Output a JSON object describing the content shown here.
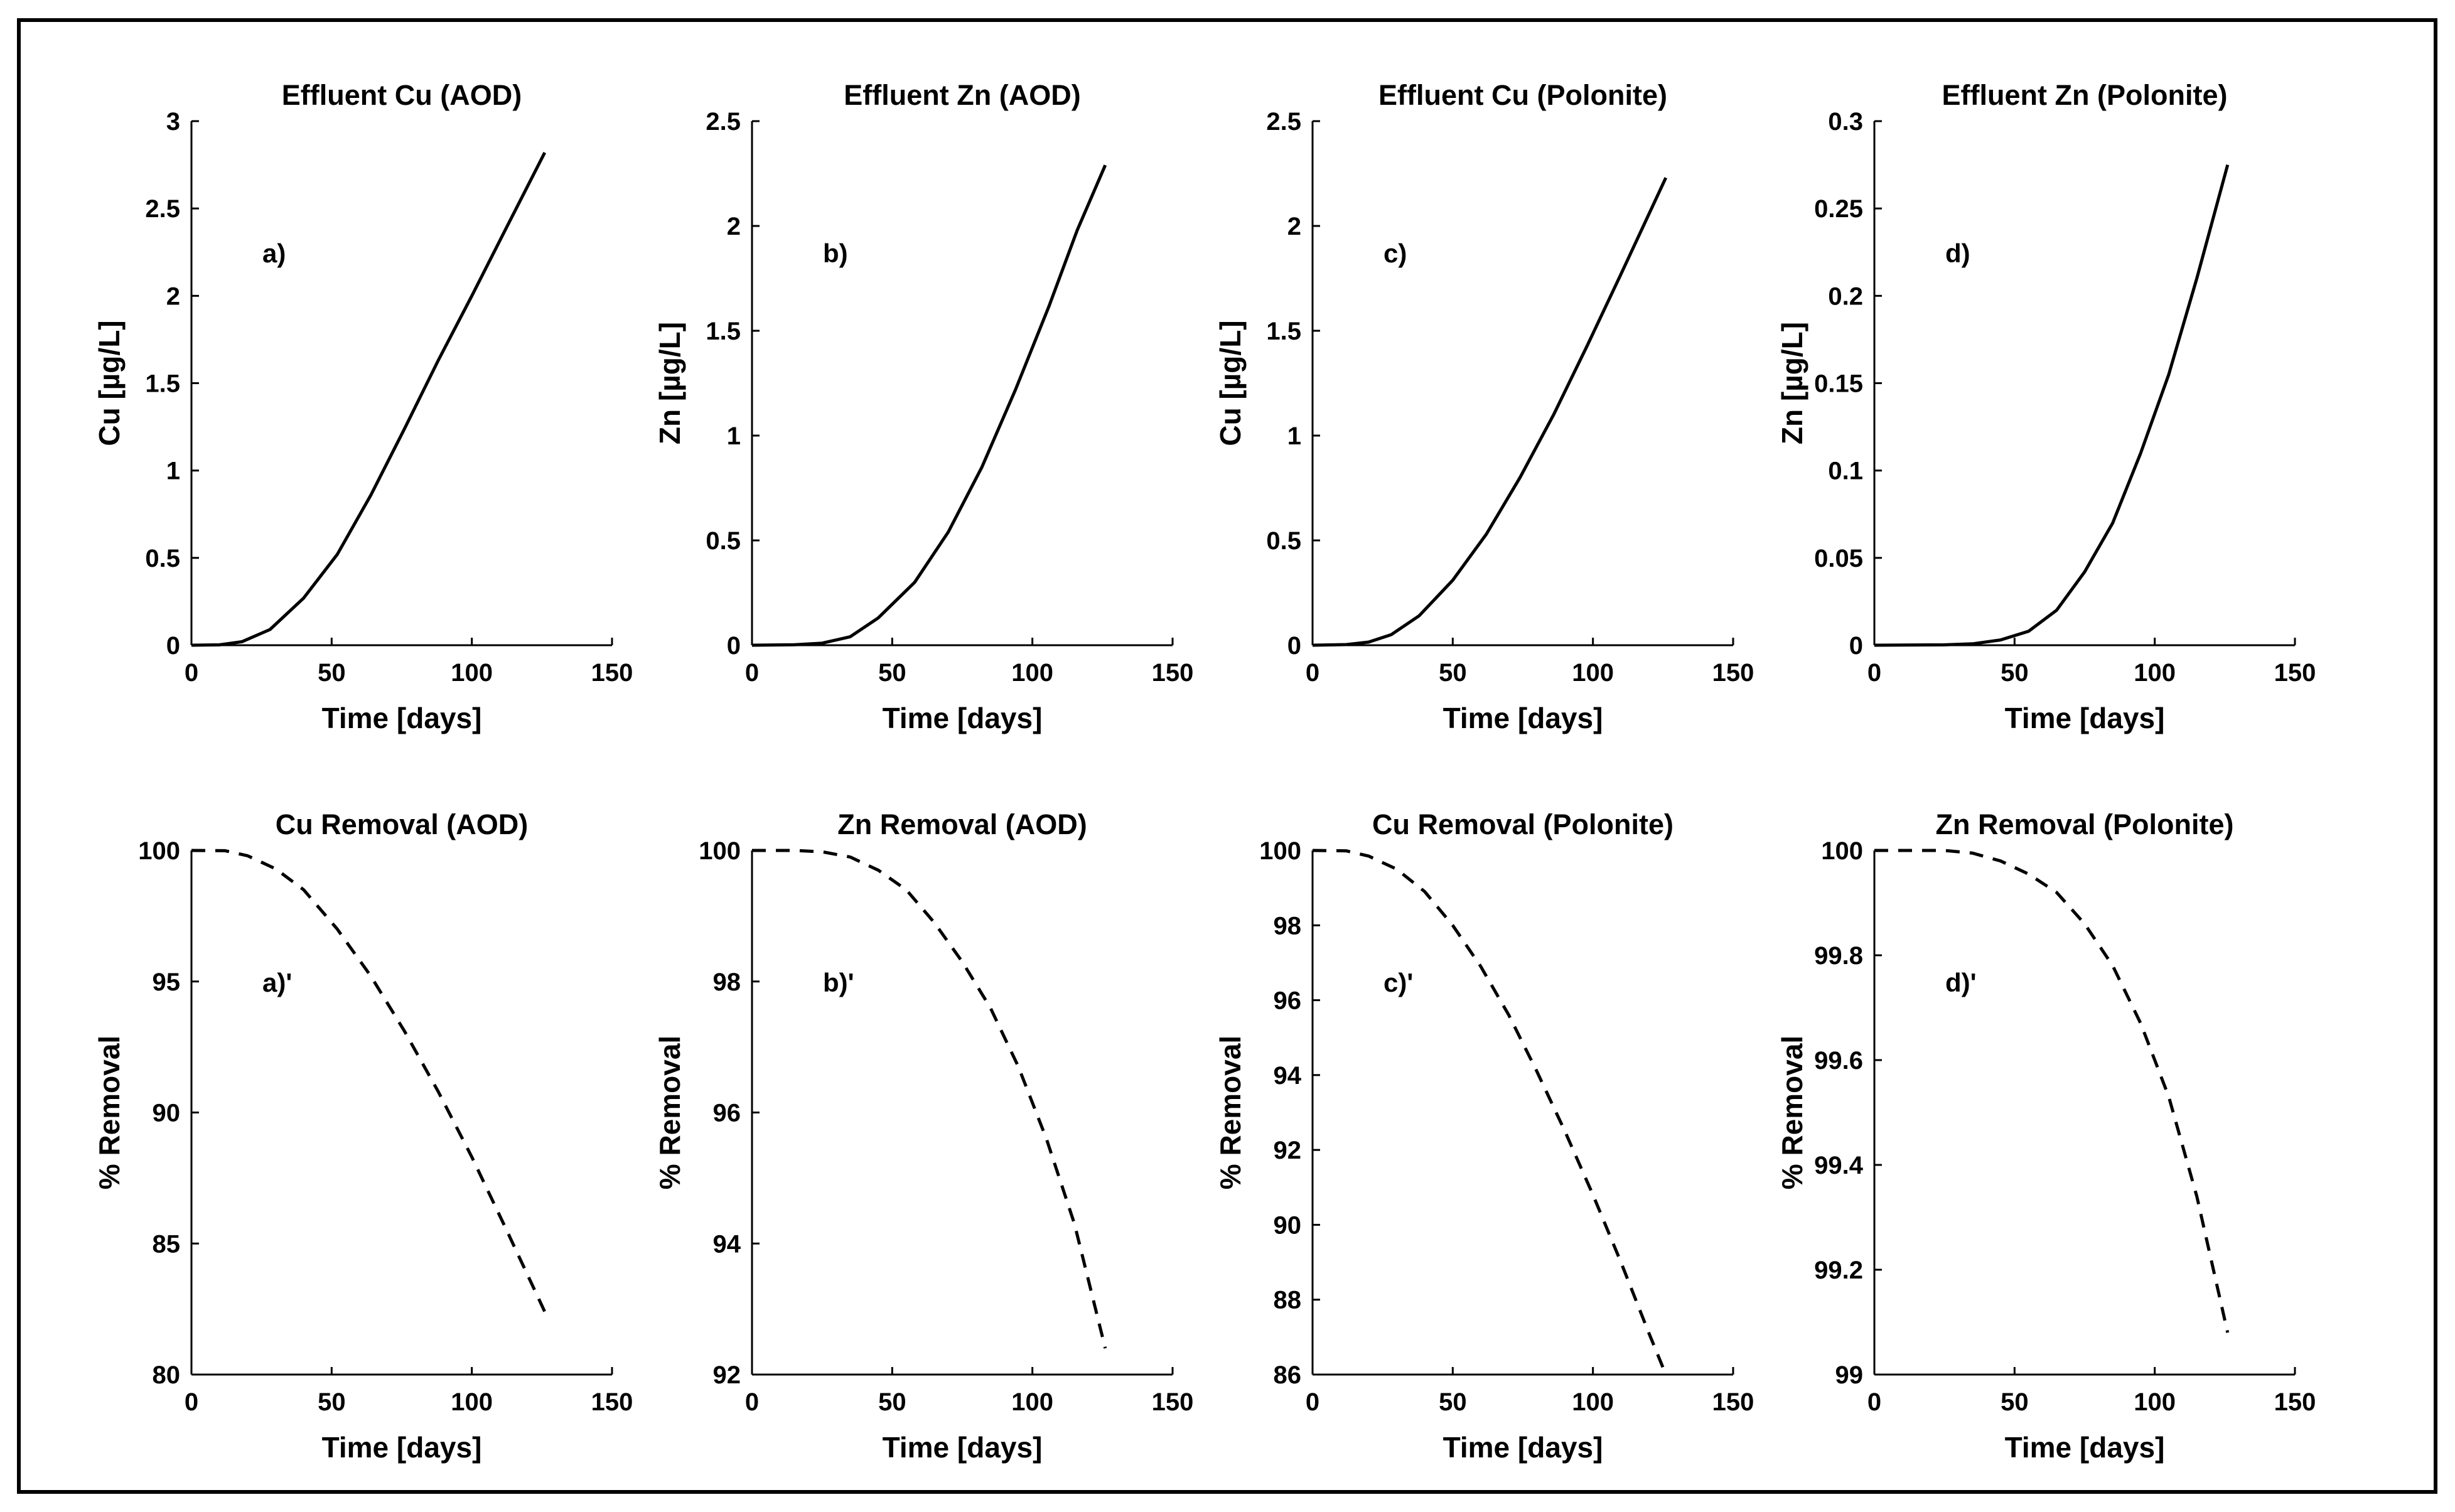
{
  "figure": {
    "background": "#ffffff",
    "border_color": "#000000",
    "line_color": "#000000"
  },
  "chart_data": [
    {
      "id": "a",
      "type": "line",
      "title": "Effluent Cu (AOD)",
      "xlabel": "Time [days]",
      "ylabel": "Cu [µg/L]",
      "annotation": "a)",
      "line_style": "solid",
      "xlim": [
        0,
        150
      ],
      "ylim": [
        0,
        3
      ],
      "xticks": [
        "0",
        "50",
        "100",
        "150"
      ],
      "yticks": [
        "0",
        "0.5",
        "1",
        "1.5",
        "2",
        "2.5",
        "3"
      ],
      "series": [
        {
          "name": "Effluent Cu (AOD)",
          "x": [
            0,
            10,
            18,
            28,
            40,
            52,
            64,
            76,
            88,
            100,
            112,
            126
          ],
          "y": [
            0,
            0.002,
            0.02,
            0.09,
            0.27,
            0.52,
            0.86,
            1.24,
            1.63,
            2.0,
            2.38,
            2.82
          ]
        }
      ]
    },
    {
      "id": "b",
      "type": "line",
      "title": "Effluent Zn (AOD)",
      "xlabel": "Time [days]",
      "ylabel": "Zn [µg/L]",
      "annotation": "b)",
      "line_style": "solid",
      "xlim": [
        0,
        150
      ],
      "ylim": [
        0,
        2.5
      ],
      "xticks": [
        "0",
        "50",
        "100",
        "150"
      ],
      "yticks": [
        "0",
        "0.5",
        "1",
        "1.5",
        "2",
        "2.5"
      ],
      "series": [
        {
          "name": "Effluent Zn (AOD)",
          "x": [
            0,
            15,
            25,
            35,
            45,
            58,
            70,
            82,
            94,
            106,
            116,
            126
          ],
          "y": [
            0,
            0.002,
            0.01,
            0.04,
            0.13,
            0.3,
            0.54,
            0.85,
            1.22,
            1.62,
            1.98,
            2.29
          ]
        }
      ]
    },
    {
      "id": "c",
      "type": "line",
      "title": "Effluent Cu (Polonite)",
      "xlabel": "Time [days]",
      "ylabel": "Cu [µg/L]",
      "annotation": "c)",
      "line_style": "solid",
      "xlim": [
        0,
        150
      ],
      "ylim": [
        0,
        2.5
      ],
      "xticks": [
        "0",
        "50",
        "100",
        "150"
      ],
      "yticks": [
        "0",
        "0.5",
        "1",
        "1.5",
        "2",
        "2.5"
      ],
      "series": [
        {
          "name": "Effluent Cu (Polonite)",
          "x": [
            0,
            12,
            20,
            28,
            38,
            50,
            62,
            74,
            86,
            98,
            110,
            126
          ],
          "y": [
            0,
            0.003,
            0.015,
            0.05,
            0.14,
            0.31,
            0.53,
            0.8,
            1.1,
            1.43,
            1.77,
            2.23
          ]
        }
      ]
    },
    {
      "id": "d",
      "type": "line",
      "title": "Effluent Zn (Polonite)",
      "xlabel": "Time [days]",
      "ylabel": "Zn [µg/L]",
      "annotation": "d)",
      "line_style": "solid",
      "xlim": [
        0,
        150
      ],
      "ylim": [
        0,
        0.3
      ],
      "xticks": [
        "0",
        "50",
        "100",
        "150"
      ],
      "yticks": [
        "0",
        "0.05",
        "0.1",
        "0.15",
        "0.2",
        "0.25",
        "0.3"
      ],
      "series": [
        {
          "name": "Effluent Zn (Polonite)",
          "x": [
            0,
            25,
            35,
            45,
            55,
            65,
            75,
            85,
            95,
            105,
            115,
            126
          ],
          "y": [
            0,
            0.0002,
            0.0008,
            0.003,
            0.008,
            0.02,
            0.042,
            0.07,
            0.11,
            0.155,
            0.21,
            0.275
          ]
        }
      ]
    },
    {
      "id": "a2",
      "type": "line",
      "title": "Cu Removal (AOD)",
      "xlabel": "Time [days]",
      "ylabel": "% Removal",
      "annotation": "a)'",
      "line_style": "dashed",
      "xlim": [
        0,
        150
      ],
      "ylim": [
        80,
        100
      ],
      "xticks": [
        "0",
        "50",
        "100",
        "150"
      ],
      "yticks": [
        "80",
        "85",
        "90",
        "95",
        "100"
      ],
      "series": [
        {
          "name": "Cu Removal (AOD)",
          "x": [
            0,
            12,
            20,
            30,
            40,
            52,
            64,
            76,
            88,
            100,
            112,
            126
          ],
          "y": [
            100,
            99.99,
            99.8,
            99.3,
            98.5,
            97.0,
            95.2,
            93.1,
            90.8,
            88.3,
            85.6,
            82.4
          ]
        }
      ]
    },
    {
      "id": "b2",
      "type": "line",
      "title": "Zn Removal (AOD)",
      "xlabel": "Time [days]",
      "ylabel": "% Removal",
      "annotation": "b)'",
      "line_style": "dashed",
      "xlim": [
        0,
        150
      ],
      "ylim": [
        92,
        100
      ],
      "xticks": [
        "0",
        "50",
        "100",
        "150"
      ],
      "yticks": [
        "92",
        "94",
        "96",
        "98",
        "100"
      ],
      "series": [
        {
          "name": "Zn Removal (AOD)",
          "x": [
            0,
            15,
            25,
            35,
            45,
            55,
            65,
            75,
            85,
            95,
            105,
            115,
            126
          ],
          "y": [
            100,
            100,
            99.98,
            99.9,
            99.7,
            99.4,
            98.9,
            98.3,
            97.6,
            96.7,
            95.6,
            94.3,
            92.4
          ]
        }
      ]
    },
    {
      "id": "c2",
      "type": "line",
      "title": "Cu Removal (Polonite)",
      "xlabel": "Time [days]",
      "ylabel": "% Removal",
      "annotation": "c)'",
      "line_style": "dashed",
      "xlim": [
        0,
        150
      ],
      "ylim": [
        86,
        100
      ],
      "xticks": [
        "0",
        "50",
        "100",
        "150"
      ],
      "yticks": [
        "86",
        "88",
        "90",
        "92",
        "94",
        "96",
        "98",
        "100"
      ],
      "series": [
        {
          "name": "Cu Removal (Polonite)",
          "x": [
            0,
            12,
            20,
            30,
            40,
            50,
            60,
            70,
            80,
            90,
            100,
            110,
            120,
            126
          ],
          "y": [
            100,
            99.99,
            99.85,
            99.5,
            98.9,
            98.0,
            96.9,
            95.6,
            94.1,
            92.5,
            90.8,
            89.0,
            87.1,
            86.0
          ]
        }
      ]
    },
    {
      "id": "d2",
      "type": "line",
      "title": "Zn Removal (Polonite)",
      "xlabel": "Time [days]",
      "ylabel": "% Removal",
      "annotation": "d)'",
      "line_style": "dashed",
      "xlim": [
        0,
        150
      ],
      "ylim": [
        99,
        100
      ],
      "xticks": [
        "0",
        "50",
        "100",
        "150"
      ],
      "yticks": [
        "99",
        "99.2",
        "99.4",
        "99.6",
        "99.8",
        "100"
      ],
      "series": [
        {
          "name": "Zn Removal (Polonite)",
          "x": [
            0,
            25,
            35,
            45,
            55,
            65,
            75,
            85,
            95,
            105,
            115,
            126
          ],
          "y": [
            100,
            100,
            99.995,
            99.98,
            99.955,
            99.92,
            99.86,
            99.78,
            99.67,
            99.53,
            99.34,
            99.08
          ]
        }
      ]
    }
  ]
}
